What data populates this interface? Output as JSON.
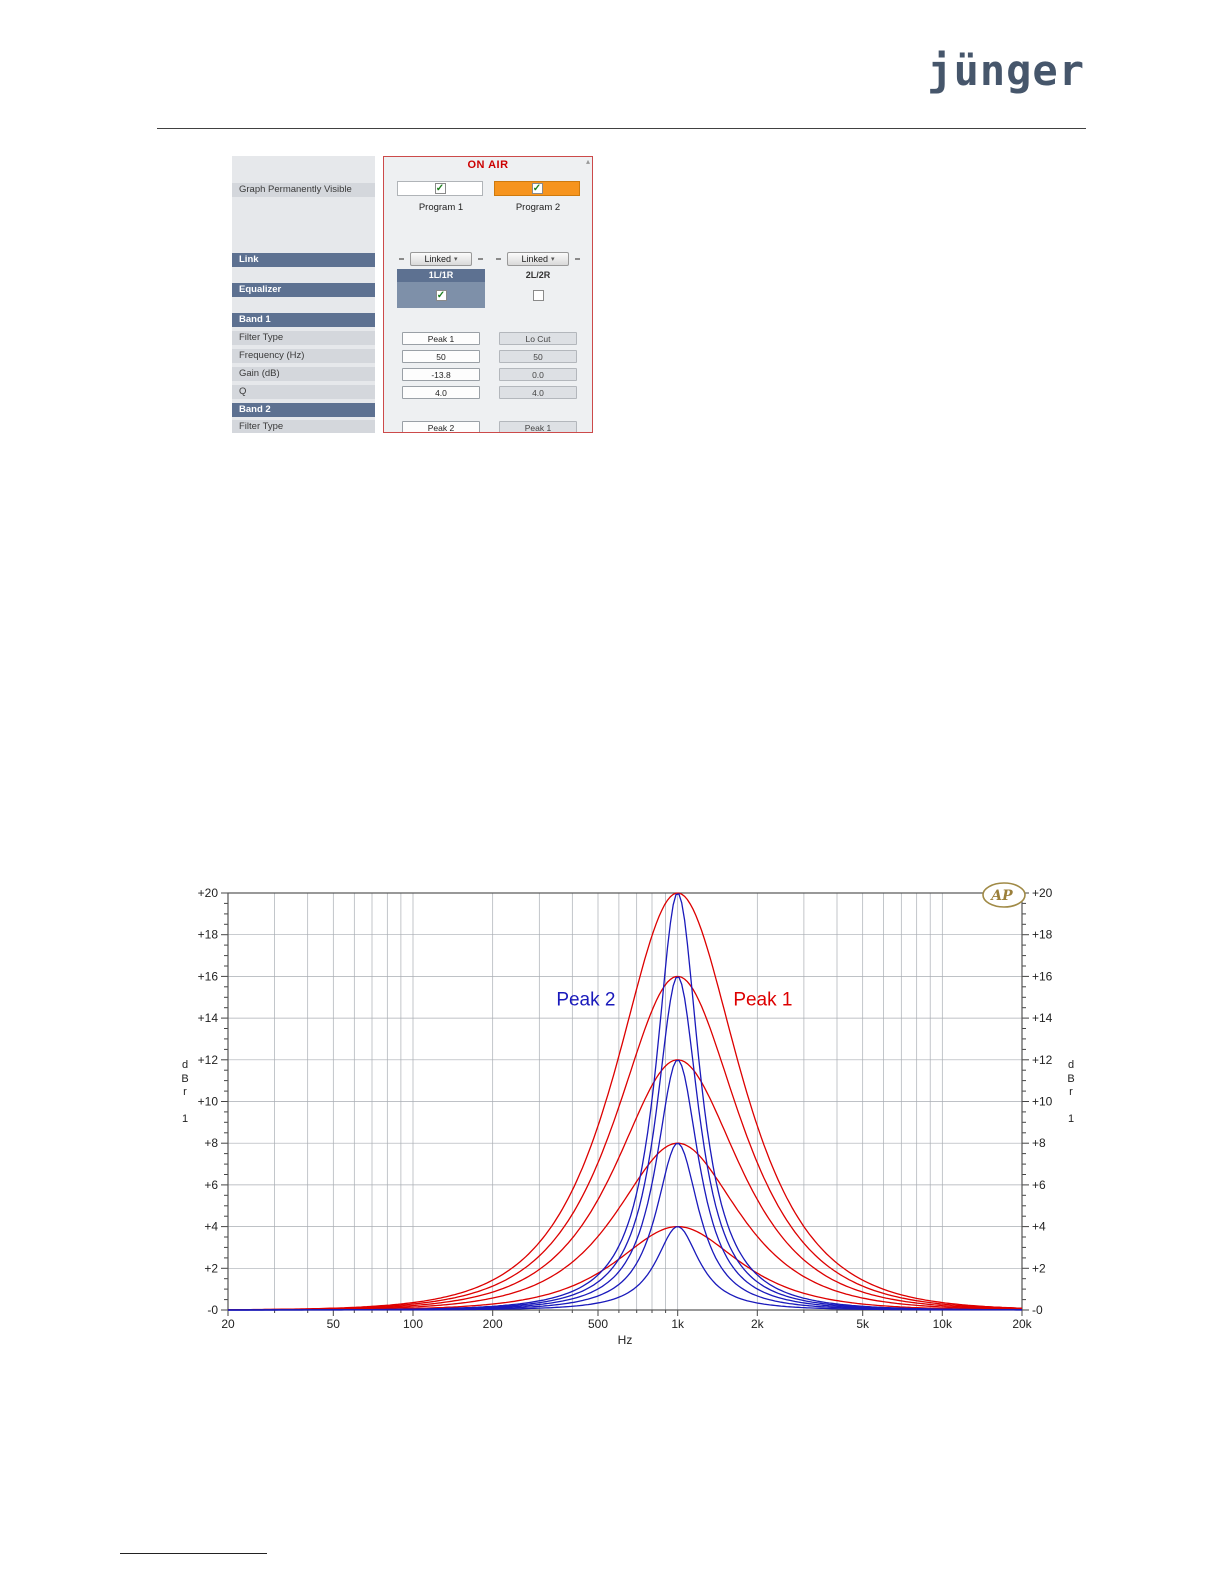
{
  "page": {
    "logo_text": "jünger"
  },
  "icons": {
    "dropdown_arrow": "▾",
    "check": "✓",
    "collapse_arrow": "▴"
  },
  "panel": {
    "title": "ON AIR",
    "left_labels": {
      "graph": "Graph Permanently Visible",
      "link": "Link",
      "equalizer": "Equalizer",
      "band1": "Band 1",
      "filter_type": "Filter Type",
      "frequency": "Frequency (Hz)",
      "gain": "Gain (dB)",
      "q": "Q",
      "band2": "Band 2",
      "filter_type2": "Filter Type"
    },
    "programs": [
      {
        "name": "Program 1",
        "graph_visible": true,
        "link_mode": "Linked",
        "channel": "1L/1R",
        "equalizer_on": true,
        "band1": {
          "filter_type": "Peak 1",
          "frequency": "50",
          "gain": "-13.8",
          "q": "4.0"
        },
        "band2": {
          "filter_type": "Peak 2"
        }
      },
      {
        "name": "Program 2",
        "graph_visible": true,
        "link_mode": "Linked",
        "channel": "2L/2R",
        "equalizer_on": false,
        "band1": {
          "filter_type": "Lo Cut",
          "frequency": "50",
          "gain": "0.0",
          "q": "4.0"
        },
        "band2": {
          "filter_type": "Peak 1"
        }
      }
    ]
  },
  "chart_data": {
    "type": "line",
    "title": "",
    "xlabel": "Hz",
    "ylabel": "dBr 1",
    "ylabel_vertical": "d\nB\nr\n\n1",
    "x_scale": "log",
    "xlim": [
      20,
      20000
    ],
    "ylim": [
      0,
      20
    ],
    "x_ticks": [
      20,
      50,
      100,
      200,
      500,
      1000,
      2000,
      5000,
      10000,
      20000
    ],
    "x_tick_labels": [
      "20",
      "50",
      "100",
      "200",
      "500",
      "1k",
      "2k",
      "5k",
      "10k",
      "20k"
    ],
    "y_ticks": [
      0,
      2,
      4,
      6,
      8,
      10,
      12,
      14,
      16,
      18,
      20
    ],
    "y_tick_labels": [
      "-0",
      "+2",
      "+4",
      "+6",
      "+8",
      "+10",
      "+12",
      "+14",
      "+16",
      "+18",
      "+20"
    ],
    "grid": true,
    "legend_position": "none",
    "series": [
      {
        "name": "Peak 1",
        "color": "#dd0000",
        "curve": "peaking_eq_bell",
        "center_hz": 1000,
        "q": 0.75,
        "peak_gains_db": [
          4,
          8,
          12,
          16,
          20
        ]
      },
      {
        "name": "Peak 2",
        "color": "#1a1abb",
        "curve": "peaking_eq_bell",
        "center_hz": 1000,
        "q": 2.2,
        "peak_gains_db": [
          4,
          8,
          12,
          16,
          20
        ]
      }
    ],
    "annotations": [
      {
        "text": "Peak 2",
        "x_hz": 450,
        "y_db": 14.6,
        "color": "#1a1abb"
      },
      {
        "text": "Peak 1",
        "x_hz": 2100,
        "y_db": 14.6,
        "color": "#dd0000"
      }
    ],
    "corner_logo": "AP"
  }
}
